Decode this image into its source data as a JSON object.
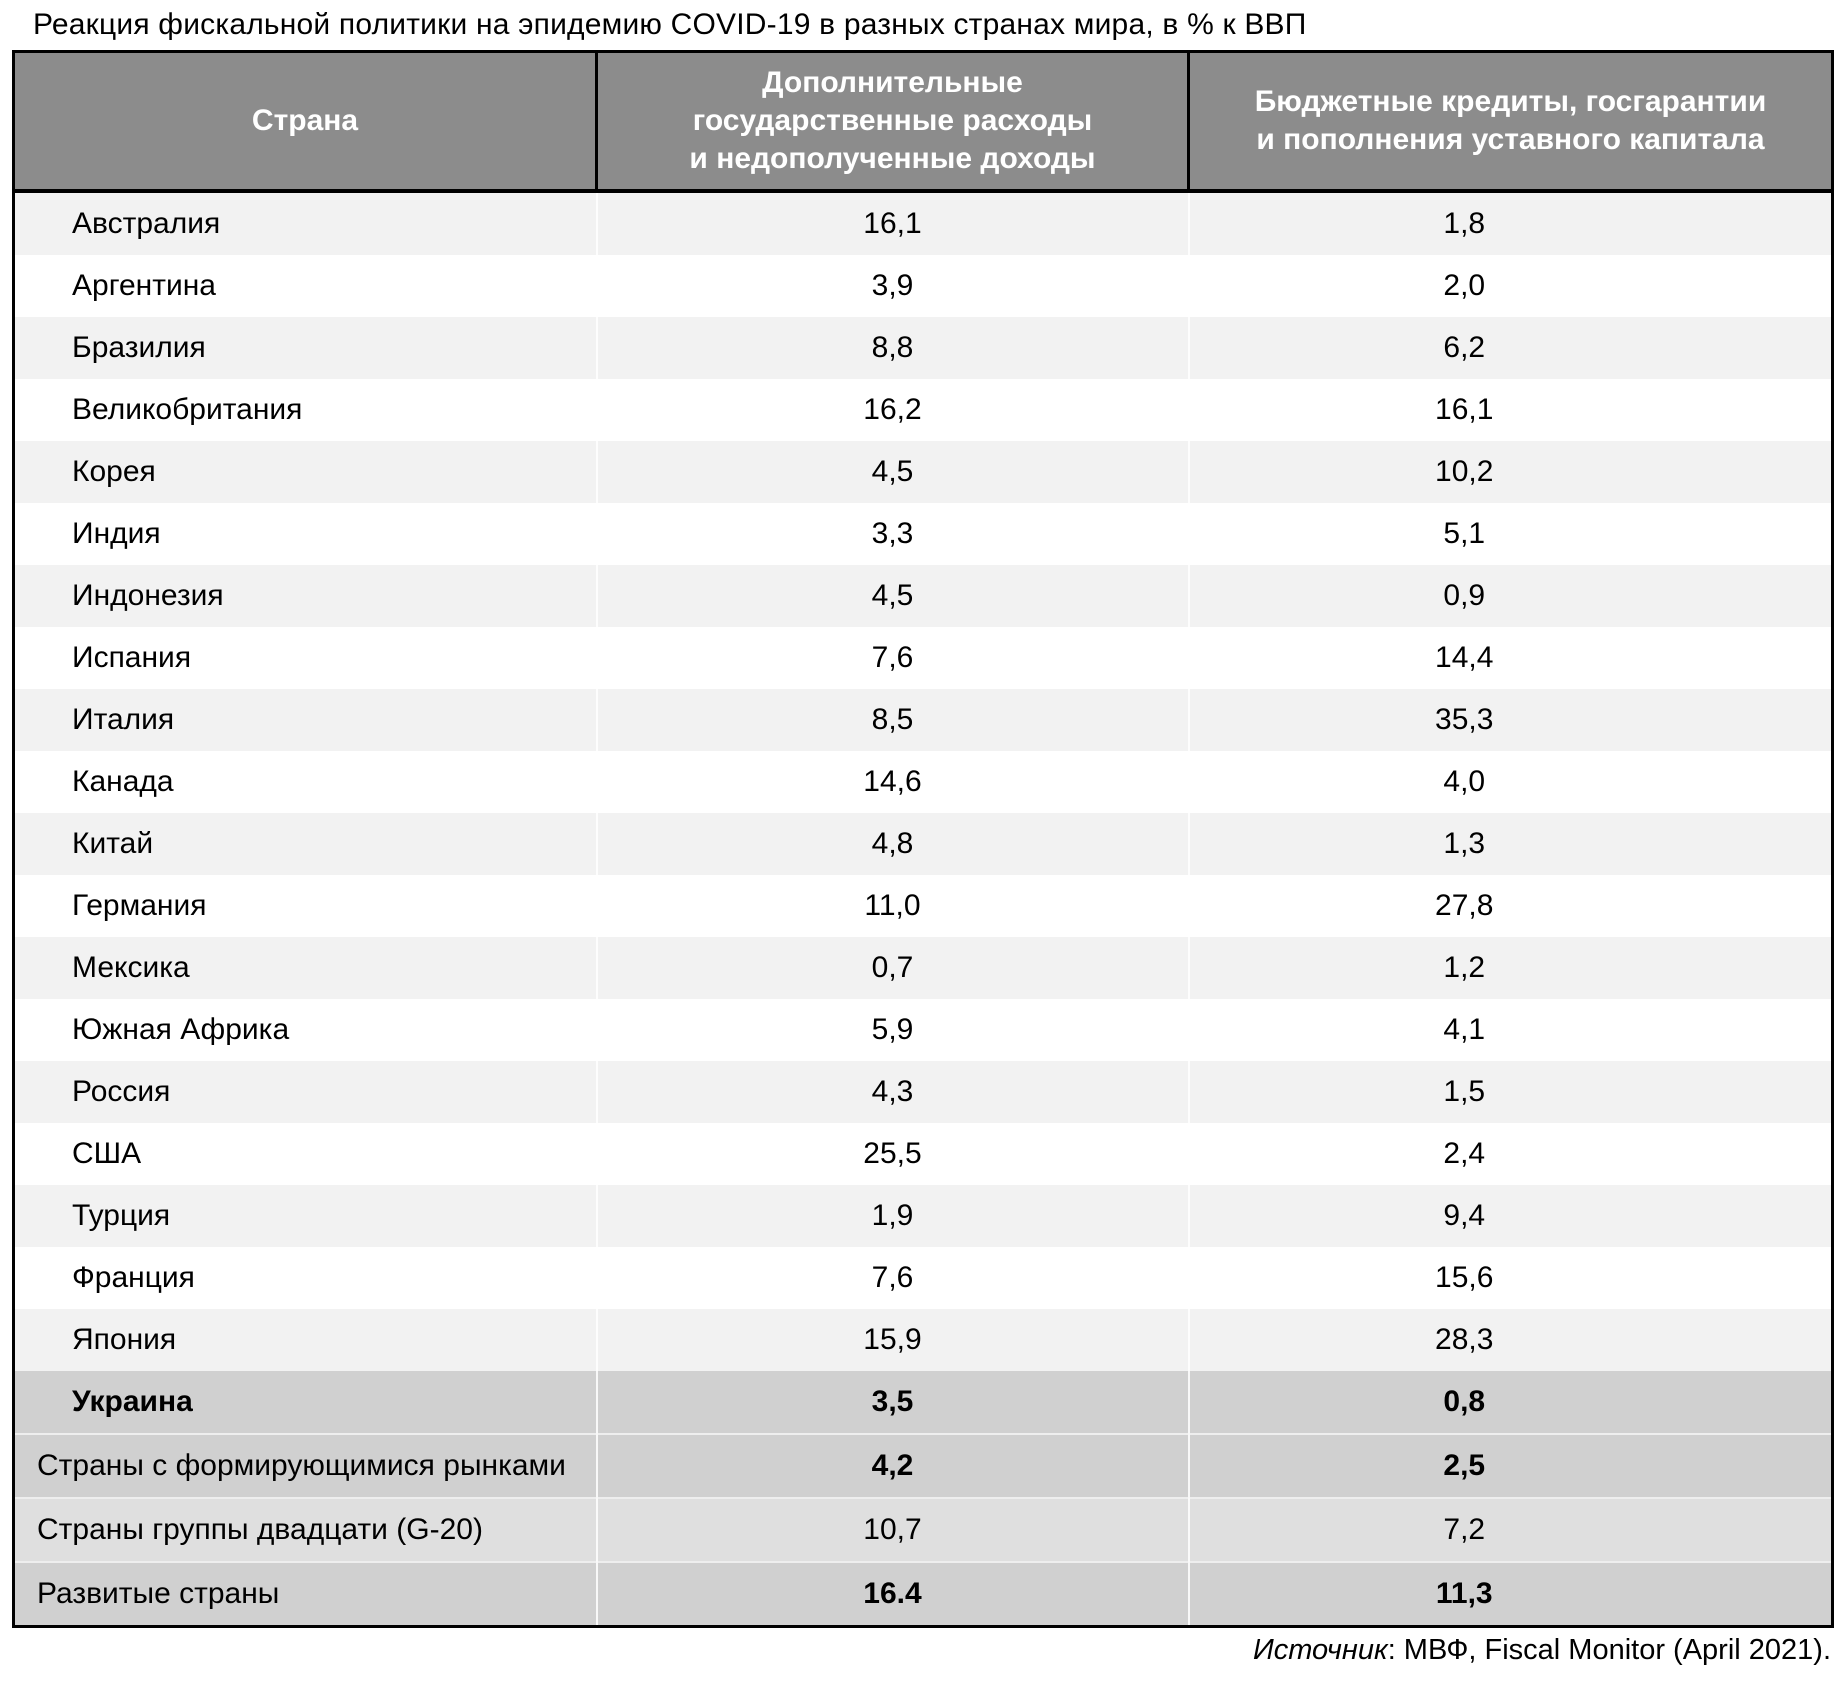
{
  "title": "Реакция фискальной политики на эпидемию COVID-19 в разных странах мира, в % к ВВП",
  "colors": {
    "header_bg": "#8c8c8c",
    "stripe_light": "#f2f2f2",
    "stripe_white": "#ffffff",
    "highlight_gray": "#d0d0d0",
    "g20_gray": "#dfdfdf",
    "border_black": "#000000"
  },
  "table": {
    "columns": [
      "Страна",
      "Дополнительные\nгосударственные расходы\nи недополученные доходы",
      "Бюджетные кредиты, госгарантии\nи пополнения уставного капитала"
    ],
    "rows": [
      {
        "country": "Австралия",
        "spending": "16,1",
        "credits": "1,8"
      },
      {
        "country": "Аргентина",
        "spending": "3,9",
        "credits": "2,0"
      },
      {
        "country": "Бразилия",
        "spending": "8,8",
        "credits": "6,2"
      },
      {
        "country": "Великобритания",
        "spending": "16,2",
        "credits": "16,1"
      },
      {
        "country": "Корея",
        "spending": "4,5",
        "credits": "10,2"
      },
      {
        "country": "Индия",
        "spending": "3,3",
        "credits": "5,1"
      },
      {
        "country": "Индонезия",
        "spending": "4,5",
        "credits": "0,9"
      },
      {
        "country": "Испания",
        "spending": "7,6",
        "credits": "14,4"
      },
      {
        "country": "Италия",
        "spending": "8,5",
        "credits": "35,3"
      },
      {
        "country": "Канада",
        "spending": "14,6",
        "credits": "4,0"
      },
      {
        "country": "Китай",
        "spending": "4,8",
        "credits": "1,3"
      },
      {
        "country": "Германия",
        "spending": "11,0",
        "credits": "27,8"
      },
      {
        "country": "Мексика",
        "spending": "0,7",
        "credits": "1,2"
      },
      {
        "country": "Южная Африка",
        "spending": "5,9",
        "credits": "4,1"
      },
      {
        "country": "Россия",
        "spending": "4,3",
        "credits": "1,5"
      },
      {
        "country": "США",
        "spending": "25,5",
        "credits": "2,4"
      },
      {
        "country": "Турция",
        "spending": "1,9",
        "credits": "9,4"
      },
      {
        "country": "Франция",
        "spending": "7,6",
        "credits": "15,6"
      },
      {
        "country": "Япония",
        "spending": "15,9",
        "credits": "28,3"
      },
      {
        "country": "Украина",
        "spending": "3,5",
        "credits": "0,8"
      },
      {
        "country": "Страны с формирующимися рынками",
        "spending": "4,2",
        "credits": "2,5"
      },
      {
        "country": "Страны группы двадцати (G-20)",
        "spending": "10,7",
        "credits": "7,2"
      },
      {
        "country": "Развитые страны",
        "spending": "16.4",
        "credits": "11,3"
      }
    ]
  },
  "source": {
    "label": "Источник",
    "text": ": МВФ, Fiscal Monitor (April 2021)."
  }
}
